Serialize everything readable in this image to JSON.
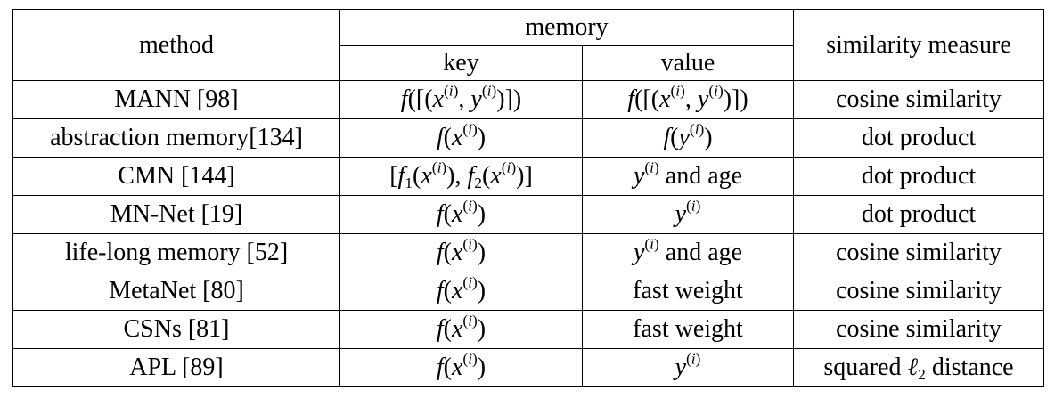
{
  "table": {
    "header": {
      "method": "method",
      "memory": "memory",
      "key": "key",
      "value": "value",
      "similarity": "similarity measure"
    },
    "rows": [
      {
        "method": "MANN [98]",
        "key": "f([(x(i), y(i))])",
        "value": "f([(x(i), y(i))])",
        "similarity": "cosine similarity"
      },
      {
        "method": "abstraction memory[134]",
        "key": "f(x(i))",
        "value": "f(y(i))",
        "similarity": "dot product"
      },
      {
        "method": "CMN [144]",
        "key": "[f1(x(i)), f2(x(i))]",
        "value": "y(i) and age",
        "similarity": "dot product"
      },
      {
        "method": "MN-Net [19]",
        "key": "f(x(i))",
        "value": "y(i)",
        "similarity": "dot product"
      },
      {
        "method": "life-long memory [52]",
        "key": "f(x(i))",
        "value": "y(i) and age",
        "similarity": "cosine similarity"
      },
      {
        "method": "MetaNet [80]",
        "key": "f(x(i))",
        "value": "fast weight",
        "similarity": "cosine similarity"
      },
      {
        "method": "CSNs [81]",
        "key": "f(x(i))",
        "value": "fast weight",
        "similarity": "cosine similarity"
      },
      {
        "method": "APL [89]",
        "key": "f(x(i))",
        "value": "y(i)",
        "similarity": "squared ℓ2 distance"
      }
    ]
  }
}
